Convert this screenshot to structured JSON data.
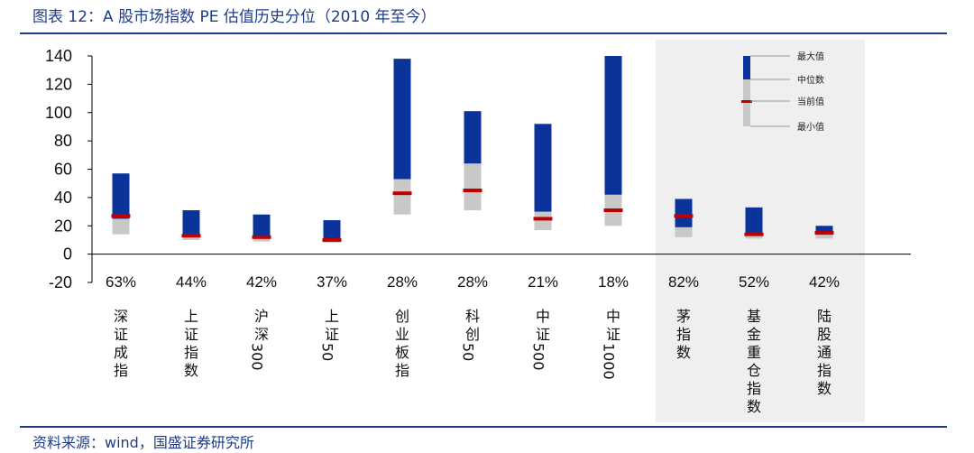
{
  "header": {
    "title": "图表 12：A 股市场指数 PE 估值历史分位（2010 年至今）"
  },
  "footer": {
    "source": "资料来源：wind，国盛证券研究所"
  },
  "chart_data": {
    "type": "bar",
    "title": "图表 12：A 股市场指数 PE 估值历史分位（2010 年至今）",
    "ylim": [
      -20,
      140
    ],
    "yticks": [
      -20,
      0,
      20,
      40,
      60,
      80,
      100,
      120,
      140
    ],
    "categories": [
      {
        "label": "深证成指",
        "lines": [
          "深",
          "证",
          "成",
          "指"
        ],
        "pct": "63%",
        "min": 14,
        "median": 25,
        "max": 57,
        "current": 27
      },
      {
        "label": "上证指数",
        "lines": [
          "上",
          "证",
          "指",
          "数"
        ],
        "pct": "44%",
        "min": 10,
        "median": 14,
        "max": 31,
        "current": 13
      },
      {
        "label": "沪深300",
        "lines": [
          "沪",
          "深",
          "300"
        ],
        "pct": "42%",
        "min": 9,
        "median": 13,
        "max": 28,
        "current": 12
      },
      {
        "label": "上证50",
        "lines": [
          "上",
          "证",
          "50"
        ],
        "pct": "37%",
        "min": 8,
        "median": 11,
        "max": 24,
        "current": 10
      },
      {
        "label": "创业板指",
        "lines": [
          "创",
          "业",
          "板",
          "指"
        ],
        "pct": "28%",
        "min": 28,
        "median": 53,
        "max": 138,
        "current": 43
      },
      {
        "label": "科创50",
        "lines": [
          "科",
          "创",
          "50"
        ],
        "pct": "28%",
        "min": 31,
        "median": 64,
        "max": 101,
        "current": 45
      },
      {
        "label": "中证500",
        "lines": [
          "中",
          "证",
          "500"
        ],
        "pct": "21%",
        "min": 17,
        "median": 30,
        "max": 92,
        "current": 25
      },
      {
        "label": "中证1000",
        "lines": [
          "中",
          "证",
          "1000"
        ],
        "pct": "18%",
        "min": 20,
        "median": 42,
        "max": 140,
        "current": 31
      },
      {
        "label": "茅指数",
        "lines": [
          "茅",
          "指",
          "数"
        ],
        "pct": "82%",
        "min": 12,
        "median": 19,
        "max": 39,
        "current": 27
      },
      {
        "label": "基金重仓指数",
        "lines": [
          "基",
          "金",
          "重",
          "仓",
          "指",
          "数"
        ],
        "pct": "52%",
        "min": 11,
        "median": 15,
        "max": 33,
        "current": 14
      },
      {
        "label": "陆股通指数",
        "lines": [
          "陆",
          "股",
          "通",
          "指",
          "数"
        ],
        "pct": "42%",
        "min": 11,
        "median": 15,
        "max": 20,
        "current": 15
      }
    ],
    "legend": {
      "max": "最大值",
      "median": "中位数",
      "current": "当前值",
      "min": "最小值",
      "placement": "top-right"
    },
    "highlight_group": [
      "茅指数",
      "基金重仓指数",
      "陆股通指数"
    ],
    "colors": {
      "upper": "#0b3399",
      "lower": "#c8c8c8",
      "current": "#c00000",
      "highlight_bg": "#efefef",
      "accent": "#1f3c88"
    }
  }
}
